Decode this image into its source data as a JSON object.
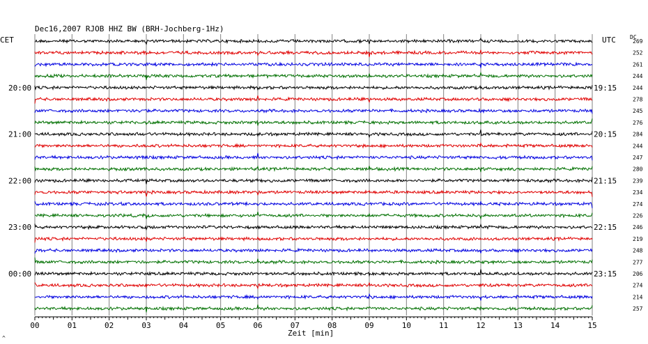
{
  "chart_data": {
    "type": "line",
    "title": "Dec16,2007   RJOB HHZ BW (BRH-Jochberg-1Hz)",
    "left_header": "CET",
    "right_header": "UTC",
    "dc_header": "DC",
    "xlabel": "Zeit [min]",
    "xlim": [
      0,
      15
    ],
    "x_ticks": [
      "00",
      "01",
      "02",
      "03",
      "04",
      "05",
      "06",
      "07",
      "08",
      "09",
      "10",
      "11",
      "12",
      "13",
      "14",
      "15"
    ],
    "trace_colors": [
      "#000000",
      "#e00000",
      "#0000e0",
      "#007000"
    ],
    "left_time_labels": [
      {
        "row": 4,
        "text": "20:00"
      },
      {
        "row": 8,
        "text": "21:00"
      },
      {
        "row": 12,
        "text": "22:00"
      },
      {
        "row": 16,
        "text": "23:00"
      },
      {
        "row": 20,
        "text": "00:00"
      }
    ],
    "right_time_labels": [
      {
        "row": 4,
        "text": "19:15"
      },
      {
        "row": 8,
        "text": "20:15"
      },
      {
        "row": 12,
        "text": "21:15"
      },
      {
        "row": 16,
        "text": "22:15"
      },
      {
        "row": 20,
        "text": "23:15"
      }
    ],
    "dc_values": [
      "269",
      "252",
      "261",
      "244",
      "244",
      "278",
      "245",
      "276",
      "284",
      "244",
      "247",
      "280",
      "239",
      "234",
      "274",
      "226",
      "246",
      "219",
      "248",
      "277",
      "206",
      "274",
      "214",
      "257"
    ],
    "footer_mark": "^"
  }
}
